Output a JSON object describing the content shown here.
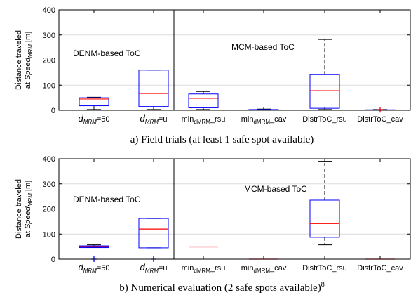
{
  "colors": {
    "box": "#0000ff",
    "median": "#ff0000",
    "whisker": "#000000",
    "outlier": "#ff0000",
    "grid": "#dcdcdc"
  },
  "chart_data": [
    {
      "type": "box",
      "caption": "a) Field trials (at least 1 safe spot available)",
      "ylabel": {
        "line1": "Distance traveled",
        "line2_prefix": "at ",
        "speed": "Speed",
        "sub": "MRM",
        "unit": " [m]"
      },
      "ylim": [
        0,
        400
      ],
      "yticks": [
        "0",
        "100",
        "200",
        "300",
        "400"
      ],
      "grid": "horizontal",
      "annotations": [
        "DENM-based ToC",
        "MCM-based ToC"
      ],
      "categories": [
        {
          "main": "d",
          "sub": "MRM",
          "rest": "=50"
        },
        {
          "main": "d",
          "sub": "MRM",
          "rest": "=u"
        },
        {
          "main": "min",
          "sub": "dMRM",
          "rest": "_rsu"
        },
        {
          "main": "min",
          "sub": "dMRM",
          "rest": "_cav"
        },
        {
          "main": "DistrToC_rsu",
          "sub": "",
          "rest": ""
        },
        {
          "main": "DistrToC_cav",
          "sub": "",
          "rest": ""
        }
      ],
      "boxes": [
        {
          "whislo": 3,
          "q1": 18,
          "med": 45,
          "q3": 50,
          "whishi": 52,
          "outliers": []
        },
        {
          "whislo": 3,
          "q1": 15,
          "med": 67,
          "q3": 160,
          "whishi": 160,
          "outliers": []
        },
        {
          "whislo": 3,
          "q1": 10,
          "med": 48,
          "q3": 65,
          "whishi": 75,
          "outliers": []
        },
        {
          "whislo": 0,
          "q1": 0,
          "med": 1,
          "q3": 3,
          "whishi": 5,
          "outliers": []
        },
        {
          "whislo": 3,
          "q1": 8,
          "med": 78,
          "q3": 142,
          "whishi": 282,
          "outliers": []
        },
        {
          "whislo": 0,
          "q1": 0,
          "med": 1,
          "q3": 2,
          "whishi": 3,
          "outliers": [
            2
          ]
        }
      ]
    },
    {
      "type": "box",
      "caption": "b) Numerical evaluation (2 safe spots available)",
      "caption_sup": "8",
      "ylabel": {
        "line1": "Distance traveled",
        "line2_prefix": "at ",
        "speed": "Speed",
        "sub": "MRM",
        "unit": " [m]"
      },
      "ylim": [
        0,
        400
      ],
      "yticks": [
        "0",
        "100",
        "200",
        "300",
        "400"
      ],
      "grid": "horizontal",
      "annotations": [
        "DENM-based ToC",
        "MCM-based ToC"
      ],
      "categories": [
        {
          "main": "d",
          "sub": "MRM",
          "rest": "=50"
        },
        {
          "main": "d",
          "sub": "MRM",
          "rest": "=u"
        },
        {
          "main": "min",
          "sub": "dMRM",
          "rest": "_rsu"
        },
        {
          "main": "min",
          "sub": "dMRM",
          "rest": "_cav"
        },
        {
          "main": "DistrToC_rsu",
          "sub": "",
          "rest": ""
        },
        {
          "main": "DistrToC_cav",
          "sub": "",
          "rest": ""
        }
      ],
      "boxes": [
        {
          "whislo": 46,
          "q1": 46,
          "med": 50,
          "q3": 53,
          "whishi": 57,
          "outliers": [
            0
          ]
        },
        {
          "whislo": 45,
          "q1": 45,
          "med": 120,
          "q3": 162,
          "whishi": 162,
          "outliers": [
            0
          ]
        },
        {
          "whislo": 49,
          "q1": 49,
          "med": 49,
          "q3": 49,
          "whishi": 49,
          "outliers": []
        },
        {
          "whislo": 0,
          "q1": 0,
          "med": 0,
          "q3": 0,
          "whishi": 0,
          "outliers": []
        },
        {
          "whislo": 57,
          "q1": 87,
          "med": 142,
          "q3": 235,
          "whishi": 390,
          "outliers": []
        },
        {
          "whislo": 0,
          "q1": 0,
          "med": 0,
          "q3": 0,
          "whishi": 0,
          "outliers": []
        }
      ]
    }
  ]
}
